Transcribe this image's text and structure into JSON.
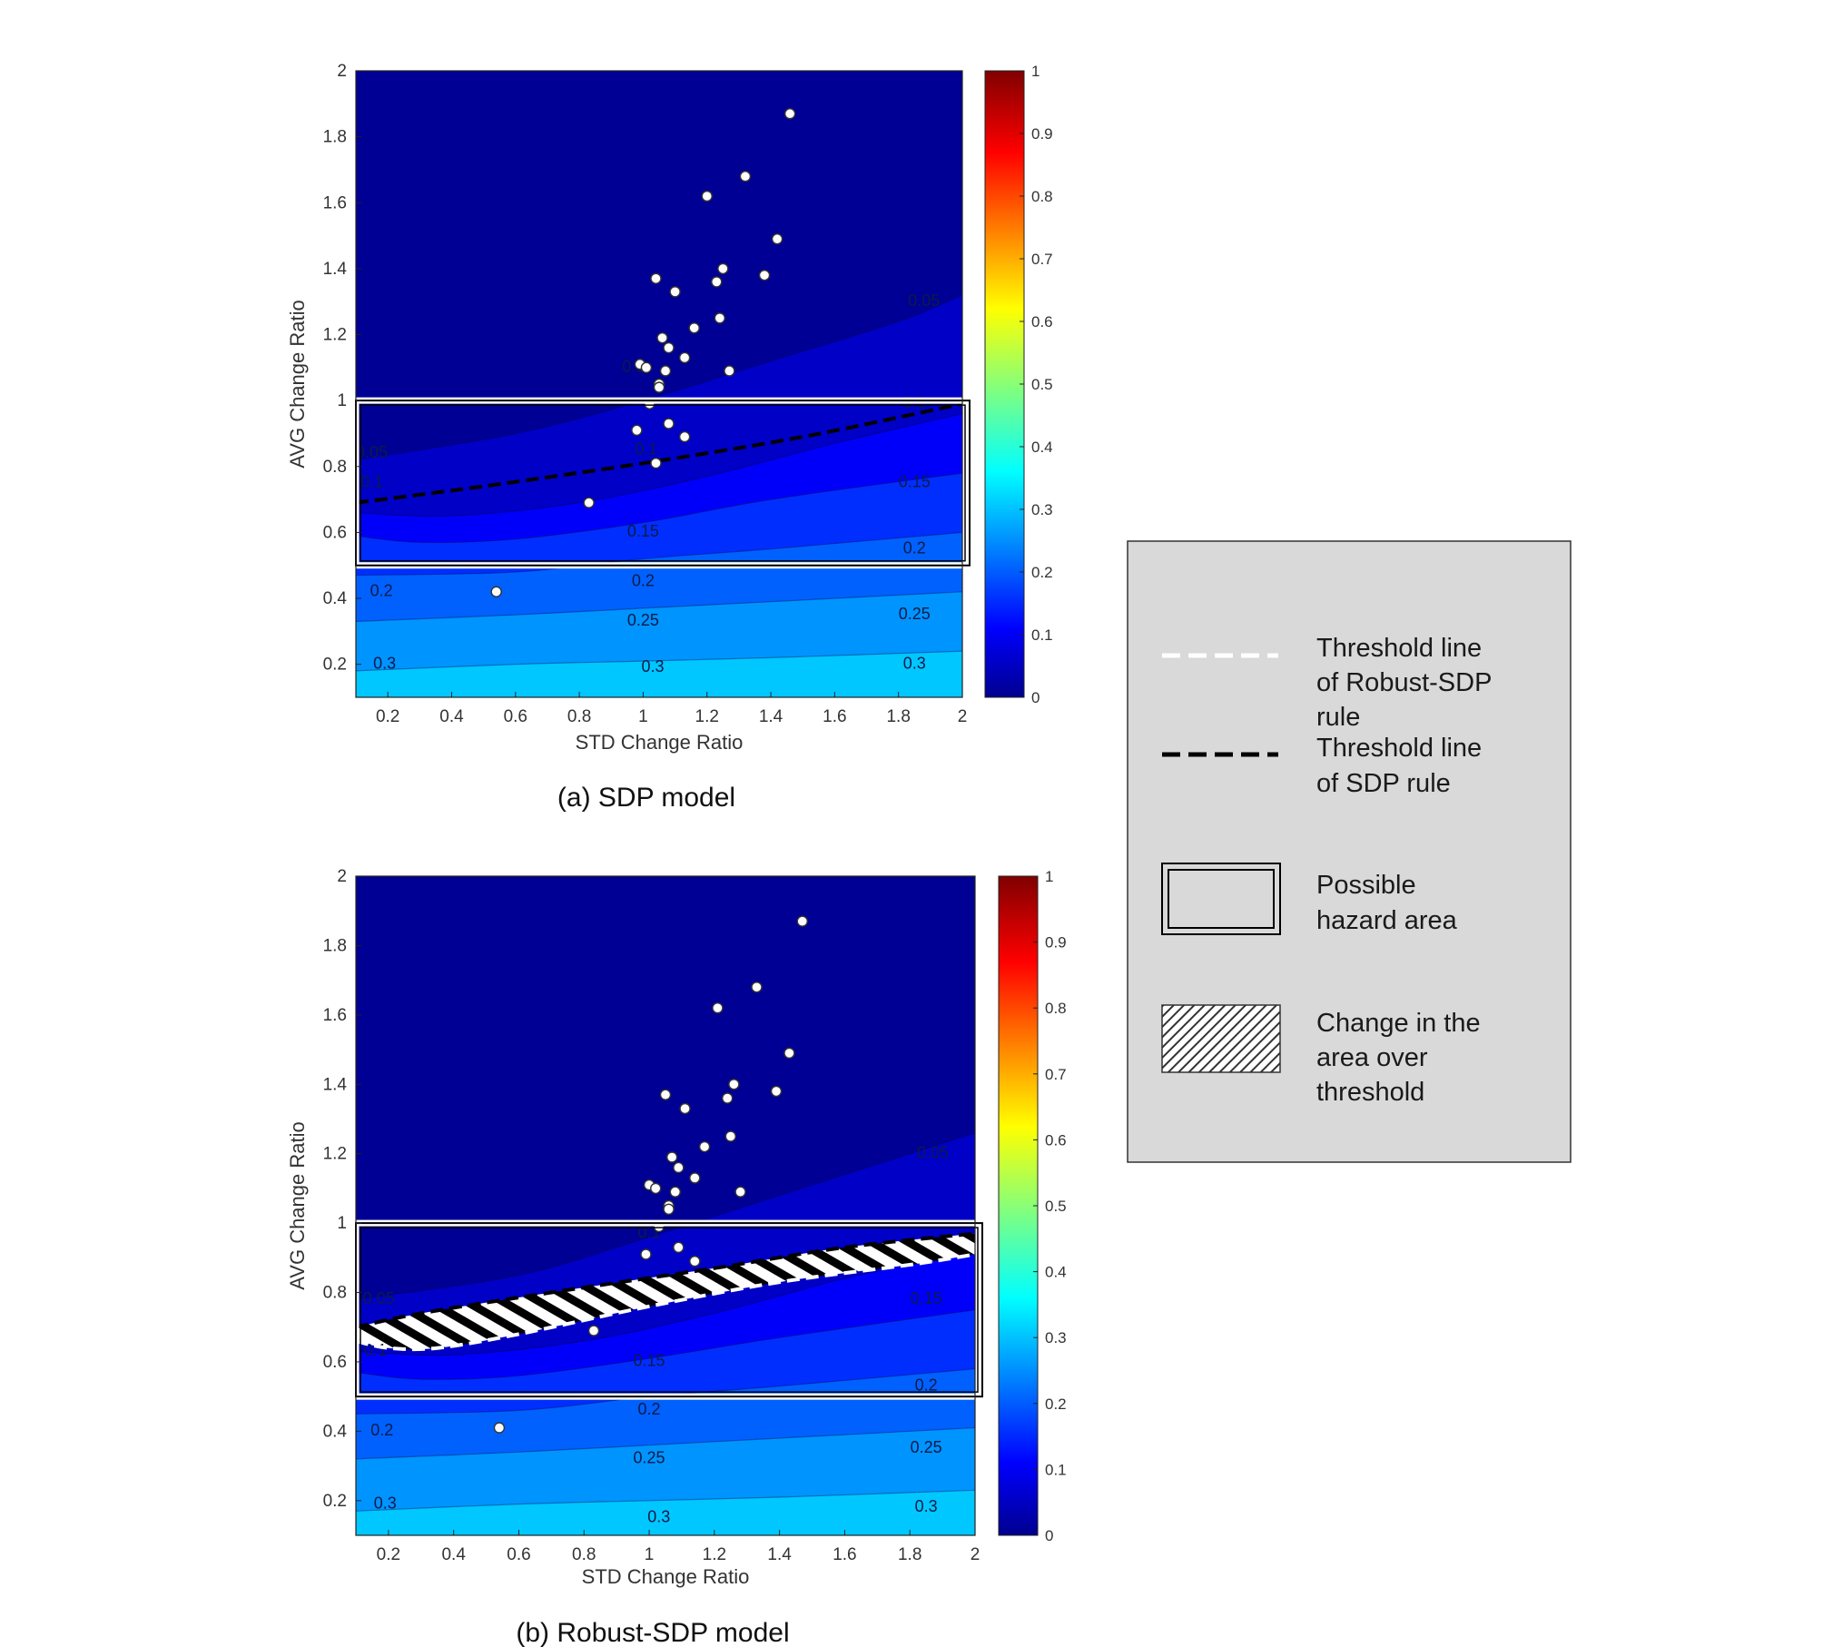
{
  "chart_data": [
    {
      "type": "contour",
      "id": "a",
      "caption": "(a) SDP model",
      "xlabel": "STD Change Ratio",
      "ylabel": "AVG Change Ratio",
      "xlim": [
        0.1,
        2.0
      ],
      "ylim": [
        0.1,
        2.0
      ],
      "x_ticks": [
        "0.2",
        "0.4",
        "0.6",
        "0.8",
        "1",
        "1.2",
        "1.4",
        "1.6",
        "1.8",
        "2"
      ],
      "y_ticks": [
        "0.2",
        "0.4",
        "0.6",
        "0.8",
        "1",
        "1.2",
        "1.4",
        "1.6",
        "1.8",
        "2"
      ],
      "colorbar": {
        "min": 0,
        "max": 1,
        "ticks": [
          "0",
          "0.1",
          "0.2",
          "0.3",
          "0.4",
          "0.5",
          "0.6",
          "0.7",
          "0.8",
          "0.9",
          "1"
        ]
      },
      "contour_levels": [
        0.05,
        0.1,
        0.15,
        0.2,
        0.25,
        0.3
      ],
      "contours": [
        {
          "level": 0.05,
          "x": [
            0.1,
            0.6,
            1.0,
            1.4,
            1.8,
            2.0
          ],
          "y": [
            0.82,
            0.9,
            1.0,
            1.12,
            1.24,
            1.32
          ]
        },
        {
          "level": 0.1,
          "x": [
            0.1,
            0.4,
            0.8,
            1.2,
            1.6,
            2.0
          ],
          "y": [
            0.66,
            0.65,
            0.69,
            0.77,
            0.87,
            0.96
          ]
        },
        {
          "level": 0.15,
          "x": [
            0.1,
            0.3,
            0.6,
            1.0,
            1.4,
            2.0
          ],
          "y": [
            0.59,
            0.57,
            0.58,
            0.63,
            0.7,
            0.78
          ]
        },
        {
          "level": 0.2,
          "x": [
            0.1,
            0.6,
            1.0,
            1.4,
            2.0
          ],
          "y": [
            0.47,
            0.48,
            0.52,
            0.55,
            0.6
          ]
        },
        {
          "level": 0.25,
          "x": [
            0.1,
            0.6,
            1.0,
            1.4,
            2.0
          ],
          "y": [
            0.33,
            0.35,
            0.37,
            0.39,
            0.42
          ]
        },
        {
          "level": 0.3,
          "x": [
            0.1,
            0.6,
            1.0,
            1.4,
            2.0
          ],
          "y": [
            0.18,
            0.2,
            0.21,
            0.22,
            0.24
          ]
        }
      ],
      "contour_labels": [
        {
          "text": "0.05",
          "x": 0.15,
          "y": 0.84
        },
        {
          "text": "0.1",
          "x": 0.15,
          "y": 0.75
        },
        {
          "text": "0.05",
          "x": 1.88,
          "y": 1.3
        },
        {
          "text": "0.1",
          "x": 0.97,
          "y": 1.1
        },
        {
          "text": "0.1",
          "x": 1.85,
          "y": 0.99
        },
        {
          "text": "0.1",
          "x": 1.01,
          "y": 0.85
        },
        {
          "text": "0.15",
          "x": 1.0,
          "y": 0.6
        },
        {
          "text": "0.15",
          "x": 1.85,
          "y": 0.75
        },
        {
          "text": "0.2",
          "x": 1.0,
          "y": 0.45
        },
        {
          "text": "0.2",
          "x": 1.85,
          "y": 0.55
        },
        {
          "text": "0.2",
          "x": 0.18,
          "y": 0.42
        },
        {
          "text": "0.25",
          "x": 1.0,
          "y": 0.33
        },
        {
          "text": "0.25",
          "x": 1.85,
          "y": 0.35
        },
        {
          "text": "0.3",
          "x": 0.19,
          "y": 0.2
        },
        {
          "text": "0.3",
          "x": 1.03,
          "y": 0.19
        },
        {
          "text": "0.3",
          "x": 1.85,
          "y": 0.2
        }
      ],
      "points": [
        {
          "x": 1.46,
          "y": 1.87
        },
        {
          "x": 1.32,
          "y": 1.68
        },
        {
          "x": 1.2,
          "y": 1.62
        },
        {
          "x": 1.42,
          "y": 1.49
        },
        {
          "x": 1.25,
          "y": 1.4
        },
        {
          "x": 1.38,
          "y": 1.38
        },
        {
          "x": 1.04,
          "y": 1.37
        },
        {
          "x": 1.23,
          "y": 1.36
        },
        {
          "x": 1.1,
          "y": 1.33
        },
        {
          "x": 1.24,
          "y": 1.25
        },
        {
          "x": 1.16,
          "y": 1.22
        },
        {
          "x": 1.06,
          "y": 1.19
        },
        {
          "x": 1.08,
          "y": 1.16
        },
        {
          "x": 1.13,
          "y": 1.13
        },
        {
          "x": 0.99,
          "y": 1.11
        },
        {
          "x": 1.01,
          "y": 1.1
        },
        {
          "x": 1.07,
          "y": 1.09
        },
        {
          "x": 1.27,
          "y": 1.09
        },
        {
          "x": 1.05,
          "y": 1.05
        },
        {
          "x": 1.05,
          "y": 1.04
        },
        {
          "x": 1.02,
          "y": 0.99
        },
        {
          "x": 1.08,
          "y": 0.93
        },
        {
          "x": 0.98,
          "y": 0.91
        },
        {
          "x": 1.13,
          "y": 0.89
        },
        {
          "x": 1.04,
          "y": 0.81
        },
        {
          "x": 0.83,
          "y": 0.69
        },
        {
          "x": 0.54,
          "y": 0.42
        }
      ],
      "threshold_sdp": {
        "x": [
          0.1,
          0.5,
          1.0,
          1.5,
          2.0
        ],
        "y": [
          0.69,
          0.74,
          0.81,
          0.89,
          0.99
        ]
      },
      "hazard_area": {
        "x": [
          0.1,
          2.0
        ],
        "y": [
          0.5,
          1.0
        ]
      }
    },
    {
      "type": "contour",
      "id": "b",
      "caption": "(b) Robust-SDP model",
      "xlabel": "STD Change Ratio",
      "ylabel": "AVG Change Ratio",
      "xlim": [
        0.1,
        2.0
      ],
      "ylim": [
        0.1,
        2.0
      ],
      "x_ticks": [
        "0.2",
        "0.4",
        "0.6",
        "0.8",
        "1",
        "1.2",
        "1.4",
        "1.6",
        "1.8",
        "2"
      ],
      "y_ticks": [
        "0.2",
        "0.4",
        "0.6",
        "0.8",
        "1",
        "1.2",
        "1.4",
        "1.6",
        "1.8",
        "2"
      ],
      "colorbar": {
        "min": 0,
        "max": 1,
        "ticks": [
          "0",
          "0.1",
          "0.2",
          "0.3",
          "0.4",
          "0.5",
          "0.6",
          "0.7",
          "0.8",
          "0.9",
          "1"
        ]
      },
      "contour_levels": [
        0.05,
        0.1,
        0.15,
        0.2,
        0.25,
        0.3
      ],
      "contours": [
        {
          "level": 0.05,
          "x": [
            0.1,
            0.6,
            1.0,
            1.4,
            1.8,
            2.0
          ],
          "y": [
            0.78,
            0.85,
            0.96,
            1.08,
            1.2,
            1.26
          ]
        },
        {
          "level": 0.1,
          "x": [
            0.1,
            0.4,
            0.8,
            1.2,
            1.6,
            2.0
          ],
          "y": [
            0.63,
            0.62,
            0.66,
            0.74,
            0.84,
            0.92
          ]
        },
        {
          "level": 0.15,
          "x": [
            0.1,
            0.3,
            0.6,
            1.0,
            1.4,
            2.0
          ],
          "y": [
            0.57,
            0.55,
            0.56,
            0.61,
            0.67,
            0.75
          ]
        },
        {
          "level": 0.2,
          "x": [
            0.1,
            0.6,
            1.0,
            1.4,
            2.0
          ],
          "y": [
            0.45,
            0.46,
            0.5,
            0.53,
            0.58
          ]
        },
        {
          "level": 0.25,
          "x": [
            0.1,
            0.6,
            1.0,
            1.4,
            2.0
          ],
          "y": [
            0.32,
            0.34,
            0.36,
            0.38,
            0.41
          ]
        },
        {
          "level": 0.3,
          "x": [
            0.1,
            0.6,
            1.0,
            1.4,
            2.0
          ],
          "y": [
            0.17,
            0.19,
            0.2,
            0.21,
            0.23
          ]
        }
      ],
      "contour_labels": [
        {
          "text": "0.05",
          "x": 0.17,
          "y": 0.78
        },
        {
          "text": "0.1",
          "x": 0.16,
          "y": 0.63
        },
        {
          "text": "0.05",
          "x": 1.87,
          "y": 1.2
        },
        {
          "text": "0.1",
          "x": 1.0,
          "y": 0.97
        },
        {
          "text": "0.15",
          "x": 1.0,
          "y": 0.6
        },
        {
          "text": "0.15",
          "x": 1.85,
          "y": 0.78
        },
        {
          "text": "0.2",
          "x": 1.0,
          "y": 0.46
        },
        {
          "text": "0.2",
          "x": 1.85,
          "y": 0.53
        },
        {
          "text": "0.2",
          "x": 0.18,
          "y": 0.4
        },
        {
          "text": "0.25",
          "x": 1.0,
          "y": 0.32
        },
        {
          "text": "0.25",
          "x": 1.85,
          "y": 0.35
        },
        {
          "text": "0.3",
          "x": 0.19,
          "y": 0.19
        },
        {
          "text": "0.3",
          "x": 1.03,
          "y": 0.15
        },
        {
          "text": "0.3",
          "x": 1.85,
          "y": 0.18
        }
      ],
      "points": [
        {
          "x": 1.47,
          "y": 1.87
        },
        {
          "x": 1.33,
          "y": 1.68
        },
        {
          "x": 1.21,
          "y": 1.62
        },
        {
          "x": 1.43,
          "y": 1.49
        },
        {
          "x": 1.26,
          "y": 1.4
        },
        {
          "x": 1.39,
          "y": 1.38
        },
        {
          "x": 1.05,
          "y": 1.37
        },
        {
          "x": 1.24,
          "y": 1.36
        },
        {
          "x": 1.11,
          "y": 1.33
        },
        {
          "x": 1.25,
          "y": 1.25
        },
        {
          "x": 1.17,
          "y": 1.22
        },
        {
          "x": 1.07,
          "y": 1.19
        },
        {
          "x": 1.09,
          "y": 1.16
        },
        {
          "x": 1.14,
          "y": 1.13
        },
        {
          "x": 1.0,
          "y": 1.11
        },
        {
          "x": 1.02,
          "y": 1.1
        },
        {
          "x": 1.08,
          "y": 1.09
        },
        {
          "x": 1.28,
          "y": 1.09
        },
        {
          "x": 1.06,
          "y": 1.05
        },
        {
          "x": 1.06,
          "y": 1.04
        },
        {
          "x": 1.03,
          "y": 0.99
        },
        {
          "x": 1.09,
          "y": 0.93
        },
        {
          "x": 0.99,
          "y": 0.91
        },
        {
          "x": 1.14,
          "y": 0.89
        },
        {
          "x": 0.83,
          "y": 0.69
        },
        {
          "x": 0.54,
          "y": 0.41
        }
      ],
      "threshold_sdp": {
        "x": [
          0.1,
          0.3,
          0.7,
          1.2,
          1.6,
          2.0
        ],
        "y": [
          0.7,
          0.74,
          0.8,
          0.87,
          0.93,
          0.97
        ]
      },
      "threshold_robust": {
        "x": [
          0.1,
          0.2,
          0.35,
          0.6,
          1.0,
          1.4,
          1.8,
          2.0
        ],
        "y": [
          0.66,
          0.64,
          0.64,
          0.68,
          0.76,
          0.83,
          0.88,
          0.91
        ]
      },
      "hatched_change_area": true,
      "hazard_area": {
        "x": [
          0.1,
          2.0
        ],
        "y": [
          0.5,
          1.0
        ]
      }
    }
  ],
  "legend": {
    "items": [
      {
        "key": "robust_threshold",
        "lines": [
          "Threshold line",
          "of Robust-SDP",
          "rule"
        ]
      },
      {
        "key": "sdp_threshold",
        "lines": [
          "Threshold line",
          "of SDP rule"
        ]
      },
      {
        "key": "hazard_area",
        "lines": [
          "Possible",
          "hazard area"
        ]
      },
      {
        "key": "change_area",
        "lines": [
          "Change in the",
          "area over",
          "threshold"
        ]
      }
    ]
  },
  "colors": {
    "background": "#ffffff",
    "legend_bg": "#d9d9d9",
    "point_fill": "#ffffff",
    "sdp_line": "#000000",
    "robust_line": "#ffffff"
  }
}
